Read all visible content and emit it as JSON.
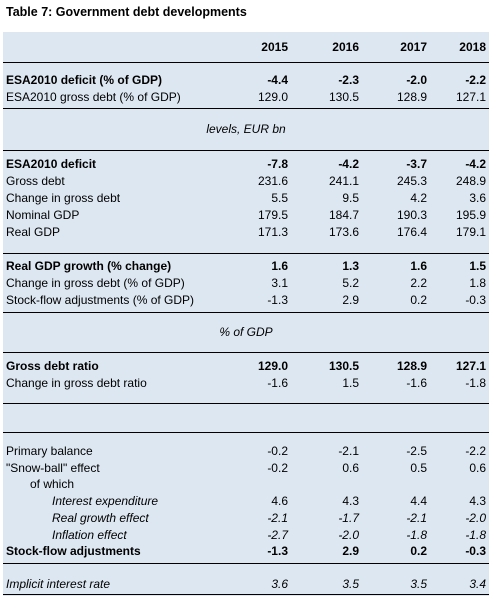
{
  "title": "Table 7: Government debt developments",
  "years": [
    "2015",
    "2016",
    "2017",
    "2018"
  ],
  "sub_levels": "levels, EUR bn",
  "sub_gdp": "% of GDP",
  "rows": {
    "r1": {
      "label": "ESA2010 deficit (% of GDP)",
      "v": [
        "-4.4",
        "-2.3",
        "-2.0",
        "-2.2"
      ]
    },
    "r2": {
      "label": "ESA2010 gross debt (% of GDP)",
      "v": [
        "129.0",
        "130.5",
        "128.9",
        "127.1"
      ]
    },
    "r3": {
      "label": "ESA2010 deficit",
      "v": [
        "-7.8",
        "-4.2",
        "-3.7",
        "-4.2"
      ]
    },
    "r4": {
      "label": "Gross debt",
      "v": [
        "231.6",
        "241.1",
        "245.3",
        "248.9"
      ]
    },
    "r5": {
      "label": "Change in gross debt",
      "v": [
        "5.5",
        "9.5",
        "4.2",
        "3.6"
      ]
    },
    "r6": {
      "label": "Nominal GDP",
      "v": [
        "179.5",
        "184.7",
        "190.3",
        "195.9"
      ]
    },
    "r7": {
      "label": "Real GDP",
      "v": [
        "171.3",
        "173.6",
        "176.4",
        "179.1"
      ]
    },
    "r8": {
      "label": "Real GDP growth (% change)",
      "v": [
        "1.6",
        "1.3",
        "1.6",
        "1.5"
      ]
    },
    "r9": {
      "label": "Change in gross debt (% of GDP)",
      "v": [
        "3.1",
        "5.2",
        "2.2",
        "1.8"
      ]
    },
    "r10": {
      "label": "Stock-flow adjustments (% of GDP)",
      "v": [
        "-1.3",
        "2.9",
        "0.2",
        "-0.3"
      ]
    },
    "r11": {
      "label": "Gross debt ratio",
      "v": [
        "129.0",
        "130.5",
        "128.9",
        "127.1"
      ]
    },
    "r12": {
      "label": "Change in gross debt ratio",
      "v": [
        "-1.6",
        "1.5",
        "-1.6",
        "-1.8"
      ]
    },
    "r13": {
      "label": "Primary balance",
      "v": [
        "-0.2",
        "-2.1",
        "-2.5",
        "-2.2"
      ]
    },
    "r14": {
      "label": "\"Snow-ball\" effect",
      "v": [
        "-0.2",
        "0.6",
        "0.5",
        "0.6"
      ]
    },
    "r15": {
      "label": "of which"
    },
    "r16": {
      "label": "Interest expenditure",
      "v": [
        "4.6",
        "4.3",
        "4.4",
        "4.3"
      ]
    },
    "r17": {
      "label": "Real growth effect",
      "v": [
        "-2.1",
        "-1.7",
        "-2.1",
        "-2.0"
      ]
    },
    "r18": {
      "label": "Inflation effect",
      "v": [
        "-2.7",
        "-2.0",
        "-1.8",
        "-1.8"
      ]
    },
    "r19": {
      "label": "Stock-flow adjustments",
      "v": [
        "-1.3",
        "2.9",
        "0.2",
        "-0.3"
      ]
    },
    "r20": {
      "label": "Implicit interest rate",
      "v": [
        "3.6",
        "3.5",
        "3.5",
        "3.4"
      ]
    }
  }
}
